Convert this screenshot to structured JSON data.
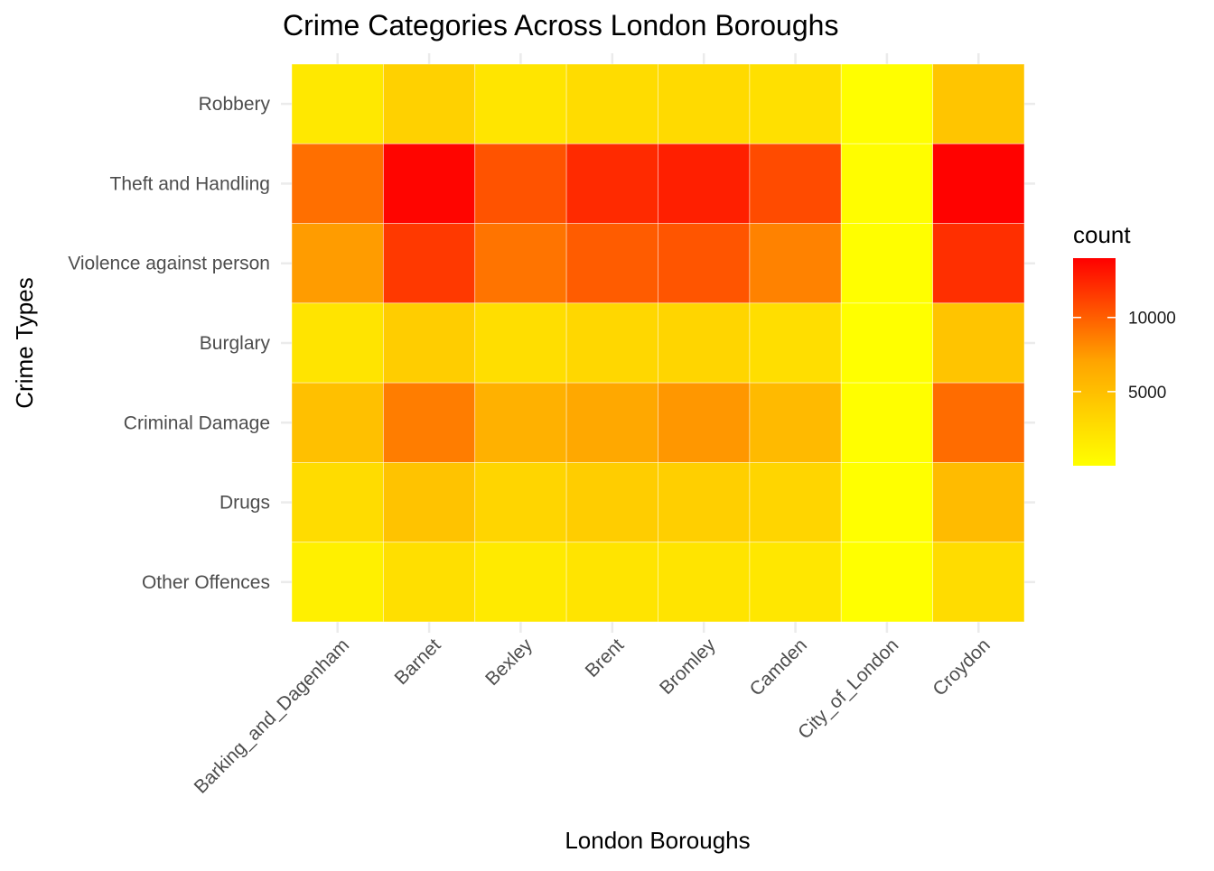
{
  "chart_data": {
    "type": "heatmap",
    "title": "Crime Categories Across London Boroughs",
    "xlabel": "London Boroughs",
    "ylabel": "Crime Types",
    "x_categories": [
      "Barking_and_Dagenham",
      "Barnet",
      "Bexley",
      "Brent",
      "Bromley",
      "Camden",
      "City_of_London",
      "Croydon"
    ],
    "y_categories": [
      "Robbery",
      "Theft and Handling",
      "Violence against person",
      "Burglary",
      "Criminal Damage",
      "Drugs",
      "Other Offences"
    ],
    "values": [
      [
        1800,
        3600,
        2000,
        2700,
        2900,
        2400,
        40,
        4500
      ],
      [
        9300,
        13800,
        10500,
        12200,
        12700,
        10800,
        150,
        13900
      ],
      [
        7400,
        11600,
        9100,
        10100,
        10400,
        8500,
        100,
        12000
      ],
      [
        2100,
        3900,
        2600,
        3100,
        3300,
        2600,
        30,
        4600
      ],
      [
        4900,
        8700,
        6100,
        6800,
        7600,
        5400,
        50,
        9400
      ],
      [
        2700,
        4700,
        3300,
        3900,
        3700,
        3300,
        30,
        5300
      ],
      [
        1200,
        2500,
        1600,
        2100,
        2100,
        1900,
        20,
        2700
      ]
    ],
    "legend": {
      "title": "count",
      "position": "right",
      "min": 0,
      "max": 14000,
      "breaks": [
        5000,
        10000
      ],
      "break_labels": [
        "5000",
        "10000"
      ],
      "low_color": "#ffff00",
      "high_color": "#ff0000"
    },
    "grid": true,
    "x_tick_rotation": "45 degrees"
  }
}
